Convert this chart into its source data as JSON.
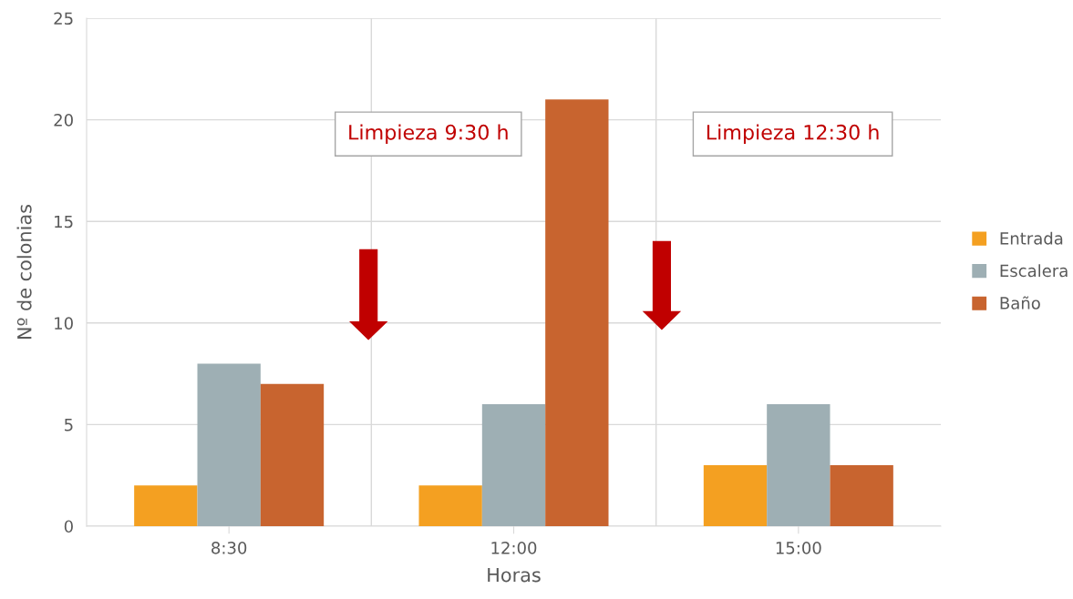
{
  "chart_data": {
    "type": "bar",
    "xlabel": "Horas",
    "ylabel": "Nº de colonias",
    "categories": [
      "8:30",
      "12:00",
      "15:00"
    ],
    "series": [
      {
        "name": "Entrada",
        "color": "#f4a021",
        "values": [
          2,
          2,
          3
        ]
      },
      {
        "name": "Escalera",
        "color": "#9eafb4",
        "values": [
          8,
          6,
          6
        ]
      },
      {
        "name": "Baño",
        "color": "#c8642f",
        "values": [
          7,
          21,
          3
        ]
      }
    ],
    "ylim": [
      0,
      25
    ],
    "yticks": [
      0,
      5,
      10,
      15,
      20,
      25
    ],
    "grid": true,
    "legend": "right",
    "annotations": [
      "Limpieza 9:30 h",
      "Limpieza 12:30 h"
    ]
  }
}
